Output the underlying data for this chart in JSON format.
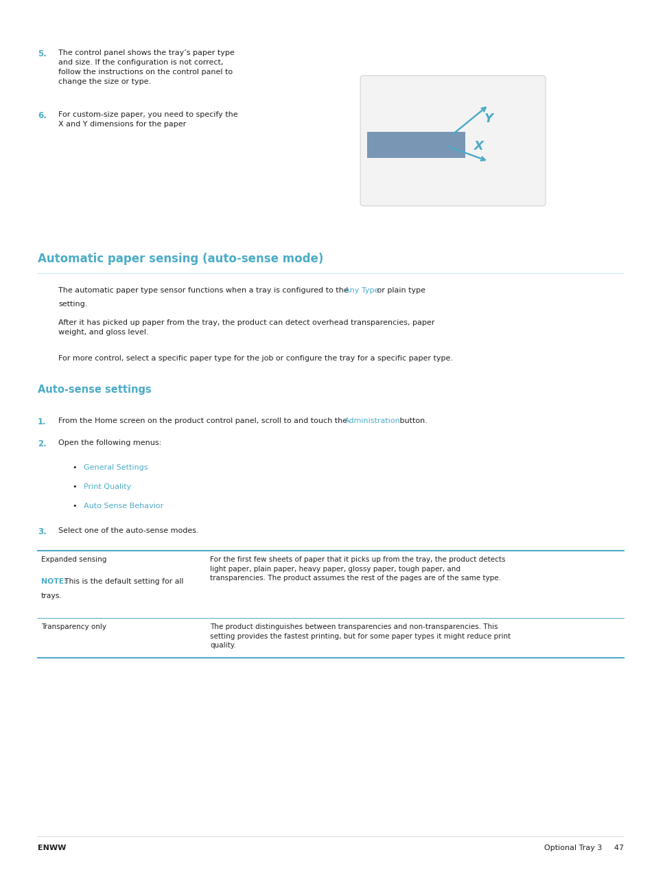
{
  "bg_color": "#ffffff",
  "text_color": "#231f20",
  "blue_color": "#4bacc6",
  "fig_width": 9.54,
  "fig_height": 12.7,
  "step5_number": "5.",
  "step5_text": "The control panel shows the tray’s paper type\nand size. If the configuration is not correct,\nfollow the instructions on the control panel to\nchange the size or type.",
  "step6_number": "6.",
  "step6_text": "For custom-size paper, you need to specify the\nX and Y dimensions for the paper",
  "section1_title": "Automatic paper sensing (auto-sense mode)",
  "para1_text1": "The automatic paper type sensor functions when a tray is configured to the ",
  "para1_link": "Any Type",
  "para1_text2": " or plain type",
  "para1_line2": "setting.",
  "para2_text": "After it has picked up paper from the tray, the product can detect overhead transparencies, paper\nweight, and gloss level.",
  "para3_text": "For more control, select a specific paper type for the job or configure the tray for a specific paper type.",
  "section2_title": "Auto-sense settings",
  "step1_number": "1.",
  "step1_text1": "From the Home screen on the product control panel, scroll to and touch the ",
  "step1_link": "Administration",
  "step1_text2": " button.",
  "step2_number": "2.",
  "step2_text": "Open the following menus:",
  "bullet1_link": "General Settings",
  "bullet2_link": "Print Quality",
  "bullet3_link": "Auto Sense Behavior",
  "step3_number": "3.",
  "step3_text": "Select one of the auto-sense modes.",
  "table_row1_col1_line1": "Expanded sensing",
  "table_row1_col1_note_bold": "NOTE:",
  "table_row1_col1_note_text": "  This is the default setting for all",
  "table_row1_col1_note_text2": "trays.",
  "table_row1_col2": "For the first few sheets of paper that it picks up from the tray, the product detects\nlight paper, plain paper, heavy paper, glossy paper, tough paper, and\ntransparencies. The product assumes the rest of the pages are of the same type.",
  "table_row2_col1": "Transparency only",
  "table_row2_col2": "The product distinguishes between transparencies and non-transparencies. This\nsetting provides the fastest printing, but for some paper types it might reduce print\nquality.",
  "footer_left": "ENWW",
  "footer_right": "Optional Tray 3",
  "footer_page": "47"
}
